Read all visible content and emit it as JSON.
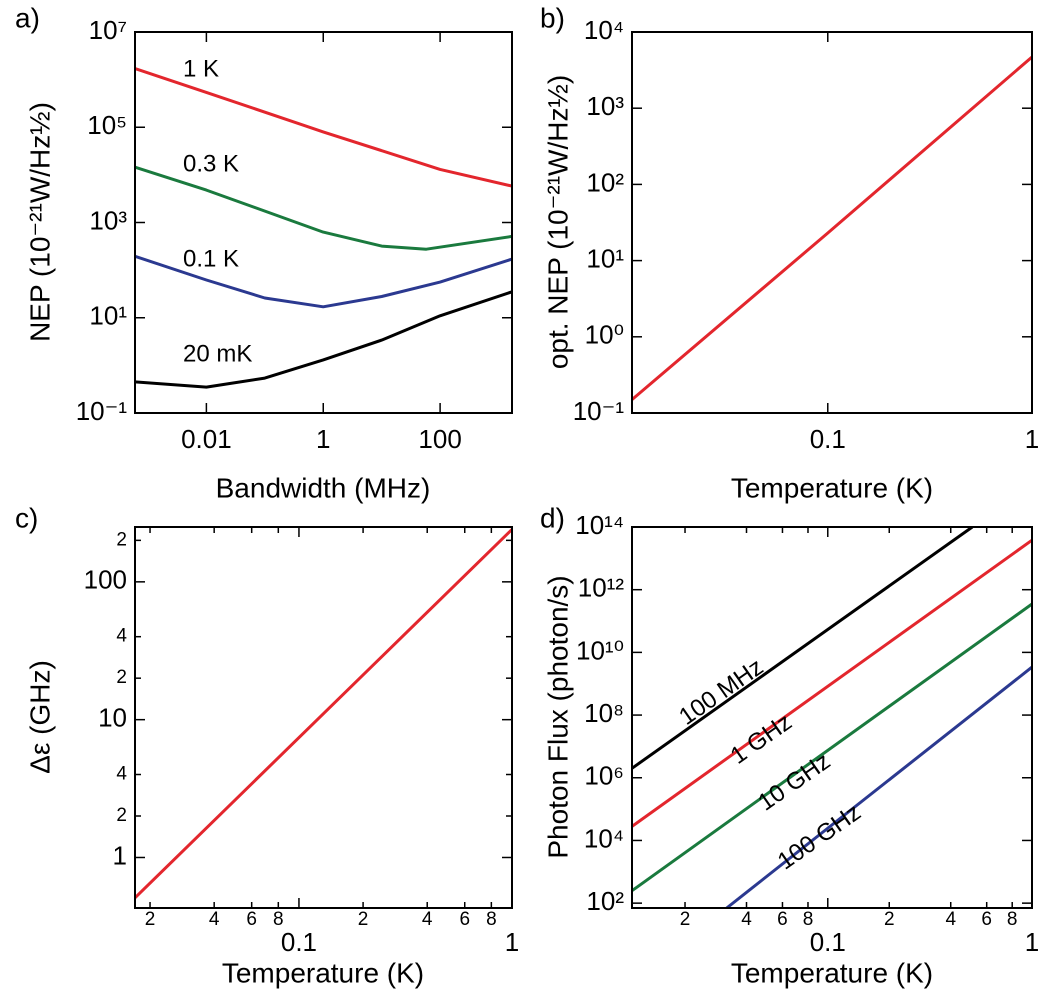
{
  "chart_data": [
    {
      "type": "line",
      "panel": "a)",
      "x_label": "Bandwidth (MHz)",
      "y_label": "NEP (10⁻²¹W/Hz½)",
      "log_x": true,
      "log_y": true,
      "xlim": [
        0.0006,
        1700
      ],
      "xticks": [
        0.01,
        1,
        100
      ],
      "ylim": [
        0.1,
        10000000
      ],
      "yticks": [
        {
          "value": 0.1,
          "label": "10⁻¹"
        },
        {
          "value": 10,
          "label": "10¹"
        },
        {
          "value": 1000,
          "label": "10³"
        },
        {
          "value": 100000,
          "label": "10⁵"
        },
        {
          "value": 10000000,
          "label": "10⁷"
        }
      ],
      "series": [
        {
          "name": "1 K",
          "color": "#e3262d",
          "x": [
            0.0006,
            0.01,
            1,
            100,
            1700
          ],
          "values": [
            1700000,
            540000,
            80000,
            13000,
            5800
          ]
        },
        {
          "name": "0.3 K",
          "color": "#1a7a3e",
          "x": [
            0.0006,
            0.01,
            1,
            10,
            58,
            1700
          ],
          "values": [
            14500,
            4800,
            630,
            320,
            275,
            510
          ]
        },
        {
          "name": "0.1 K",
          "color": "#2b3990",
          "x": [
            0.0006,
            0.01,
            0.1,
            1,
            10,
            100,
            1700
          ],
          "values": [
            195,
            62,
            26,
            17,
            28,
            56,
            170
          ]
        },
        {
          "name": "20 mK",
          "color": "#000000",
          "x": [
            0.0006,
            0.01,
            0.1,
            1,
            10,
            100,
            1700
          ],
          "values": [
            0.45,
            0.35,
            0.54,
            1.3,
            3.4,
            11,
            35
          ]
        }
      ]
    },
    {
      "type": "line",
      "panel": "b)",
      "x_label": "Temperature (K)",
      "y_label": "opt. NEP (10⁻²¹W/Hz½)",
      "log_x": true,
      "log_y": true,
      "xlim": [
        0.011,
        1
      ],
      "xticks": [
        0.1,
        1
      ],
      "ylim": [
        0.1,
        10000
      ],
      "yticks": [
        {
          "value": 0.1,
          "label": "10⁻¹"
        },
        {
          "value": 1,
          "label": "10⁰"
        },
        {
          "value": 10,
          "label": "10¹"
        },
        {
          "value": 100,
          "label": "10²"
        },
        {
          "value": 1000,
          "label": "10³"
        },
        {
          "value": 10000,
          "label": "10⁴"
        }
      ],
      "color": "#e3262d",
      "x": [
        0.011,
        0.1,
        1
      ],
      "values": [
        0.15,
        23,
        4700
      ]
    },
    {
      "type": "line",
      "panel": "c)",
      "x_label": "Temperature (K)",
      "y_label": "Δε (GHz)",
      "log_x": true,
      "log_y": true,
      "xlim": [
        0.017,
        1
      ],
      "xticks": [
        {
          "value": 0.02,
          "label": "2"
        },
        {
          "value": 0.04,
          "label": "4"
        },
        {
          "value": 0.06,
          "label": "6"
        },
        {
          "value": 0.08,
          "label": "8"
        },
        0.1,
        {
          "value": 0.2,
          "label": "2"
        },
        {
          "value": 0.4,
          "label": "4"
        },
        {
          "value": 0.6,
          "label": "6"
        },
        {
          "value": 0.8,
          "label": "8"
        },
        1
      ],
      "ylim": [
        0.43,
        250
      ],
      "yticks": [
        1,
        2,
        4,
        10,
        {
          "value": 20,
          "label": "2"
        },
        {
          "value": 40,
          "label": "4"
        },
        100,
        {
          "value": 200,
          "label": "2"
        }
      ],
      "color": "#e3262d",
      "x": [
        0.017,
        1
      ],
      "values": [
        0.51,
        240
      ]
    },
    {
      "type": "line",
      "panel": "d)",
      "x_label": "Temperature (K)",
      "y_label": "Photon Flux (photon/s)",
      "log_x": true,
      "log_y": true,
      "xlim": [
        0.011,
        1
      ],
      "xticks": [
        {
          "value": 0.02,
          "label": "2"
        },
        {
          "value": 0.04,
          "label": "4"
        },
        {
          "value": 0.06,
          "label": "6"
        },
        {
          "value": 0.08,
          "label": "8"
        },
        0.1,
        {
          "value": 0.2,
          "label": "2"
        },
        {
          "value": 0.4,
          "label": "4"
        },
        {
          "value": 0.6,
          "label": "6"
        },
        {
          "value": 0.8,
          "label": "8"
        },
        1
      ],
      "ylim": [
        70,
        100000000000000
      ],
      "yticks": [
        {
          "value": 100,
          "label": "10²"
        },
        {
          "value": 10000,
          "label": "10⁴"
        },
        {
          "value": 1000000,
          "label": "10⁶"
        },
        {
          "value": 100000000,
          "label": "10⁸"
        },
        {
          "value": 10000000000,
          "label": "10¹⁰"
        },
        {
          "value": 1000000000000,
          "label": "10¹²"
        },
        {
          "value": 100000000000000,
          "label": "10¹⁴"
        }
      ],
      "series": [
        {
          "name": "100 MHz",
          "color": "#000000",
          "x": [
            0.011,
            0.51
          ],
          "values": [
            2000000,
            100000000000000
          ]
        },
        {
          "name": "1 GHz",
          "color": "#e3262d",
          "x": [
            0.011,
            1
          ],
          "values": [
            28000,
            38000000000000
          ]
        },
        {
          "name": "10 GHz",
          "color": "#1a7a3e",
          "x": [
            0.011,
            1
          ],
          "values": [
            250,
            350000000000
          ]
        },
        {
          "name": "100 GHz",
          "color": "#2b3990",
          "x": [
            0.032,
            1
          ],
          "values": [
            70,
            3400000000
          ]
        }
      ]
    }
  ]
}
